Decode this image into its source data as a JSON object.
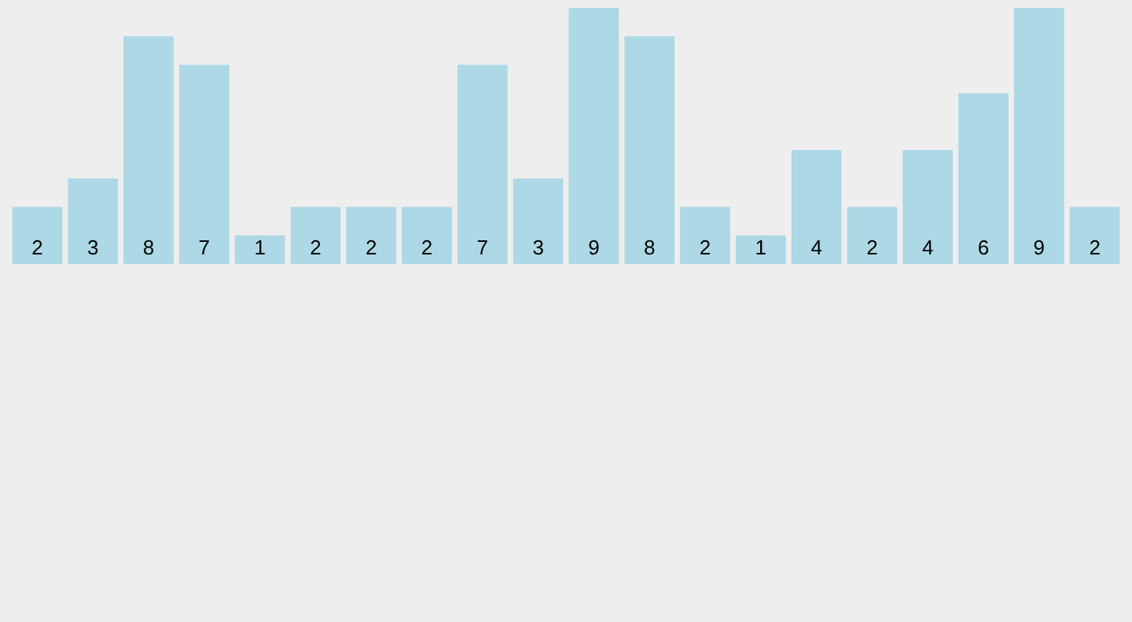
{
  "chart_data": {
    "type": "bar",
    "categories": [
      null,
      null,
      null,
      null,
      null,
      null,
      null,
      null,
      null,
      null,
      null,
      null,
      null,
      null,
      null,
      null,
      null,
      null,
      null,
      null
    ],
    "values": [
      2,
      3,
      8,
      7,
      1,
      2,
      2,
      2,
      7,
      3,
      9,
      8,
      2,
      1,
      4,
      2,
      4,
      6,
      9,
      2
    ],
    "color": "#add8e6",
    "data_labels": true
  }
}
